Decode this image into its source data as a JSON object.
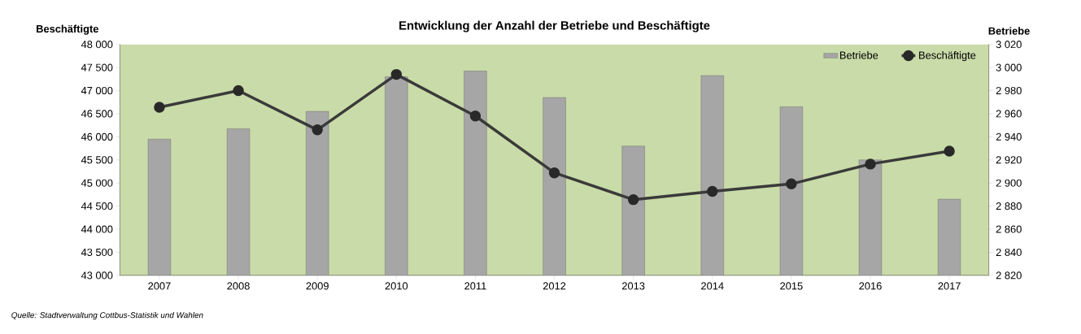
{
  "chart_data": {
    "type": "bar",
    "title": "Entwicklung der Anzahl der Betriebe und Beschäftigte",
    "ylabel": "Beschäftigte",
    "y2label": "Betriebe",
    "categories": [
      "2007",
      "2008",
      "2009",
      "2010",
      "2011",
      "2012",
      "2013",
      "2014",
      "2015",
      "2016",
      "2017"
    ],
    "series": [
      {
        "name": "Betriebe",
        "axis": "y2",
        "color": "#a6a6a6",
        "values": [
          2938,
          2947,
          2962,
          2992,
          2997,
          2974,
          2932,
          2993,
          2966,
          2920,
          2886
        ]
      },
      {
        "name": "Beschäftigte",
        "type": "line",
        "color": "#3a3a3a",
        "values": [
          46640,
          47000,
          46150,
          47350,
          46450,
          45220,
          44640,
          44820,
          44980,
          45410,
          45690
        ]
      }
    ],
    "ylim": [
      43000,
      48000
    ],
    "yticks": [
      {
        "value": 43000,
        "label": "43 000"
      },
      {
        "value": 43500,
        "label": "43 500"
      },
      {
        "value": 44000,
        "label": "44 000"
      },
      {
        "value": 44500,
        "label": "44 500"
      },
      {
        "value": 45000,
        "label": "45 000"
      },
      {
        "value": 45500,
        "label": "45 500"
      },
      {
        "value": 46000,
        "label": "46 000"
      },
      {
        "value": 46500,
        "label": "46 500"
      },
      {
        "value": 47000,
        "label": "47 000"
      },
      {
        "value": 47500,
        "label": "47 500"
      },
      {
        "value": 48000,
        "label": "48 000"
      }
    ],
    "y2lim": [
      2820,
      3020
    ],
    "y2ticks": [
      {
        "value": 2820,
        "label": "2 820"
      },
      {
        "value": 2840,
        "label": "2 840"
      },
      {
        "value": 2860,
        "label": "2 860"
      },
      {
        "value": 2880,
        "label": "2 880"
      },
      {
        "value": 2900,
        "label": "2 900"
      },
      {
        "value": 2920,
        "label": "2 920"
      },
      {
        "value": 2940,
        "label": "2 940"
      },
      {
        "value": 2960,
        "label": "2 960"
      },
      {
        "value": 2980,
        "label": "2 980"
      },
      {
        "value": 3000,
        "label": "3 000"
      },
      {
        "value": 3020,
        "label": "3 020"
      }
    ],
    "legend": "top right",
    "marker": "circle",
    "annotations": [
      "Quelle: Stadtverwaltung Cottbus-Statistik und Wahlen"
    ]
  }
}
